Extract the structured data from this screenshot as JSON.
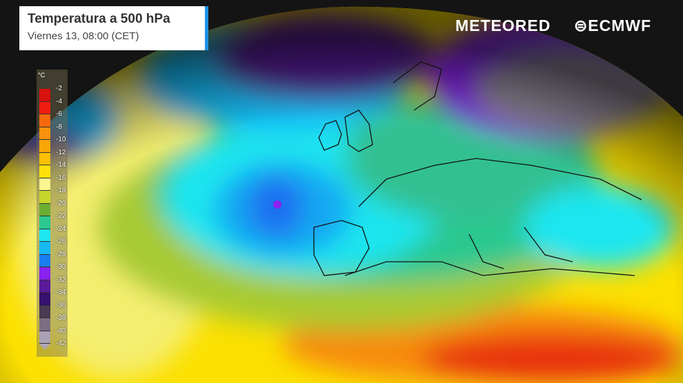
{
  "header": {
    "title": "Temperatura a 500 hPa",
    "subtitle": "Viernes 13, 08:00 (CET)"
  },
  "brands": {
    "meteored": "METEORED",
    "ecmwf": "ECMWF"
  },
  "legend": {
    "unit": "°C",
    "labels": [
      "-2",
      "-4",
      "-6",
      "-8",
      "-10",
      "-12",
      "-14",
      "-16",
      "-18",
      "-20",
      "-22",
      "-24",
      "-26",
      "-28",
      "-30",
      "-32",
      "-34",
      "-36",
      "-38",
      "-40",
      "-42"
    ],
    "colors": [
      "#d8120c",
      "#f01c10",
      "#f56a0e",
      "#f7930c",
      "#f9a60a",
      "#fbbf08",
      "#fde00a",
      "#fbf590",
      "#c6d62a",
      "#6cae34",
      "#2cc890",
      "#1ee6f0",
      "#18b8f2",
      "#1a7ef0",
      "#8a22f0",
      "#5a1a9a",
      "#38106e",
      "#4a3a52",
      "#7a6e80",
      "#aaa2b2"
    ]
  }
}
